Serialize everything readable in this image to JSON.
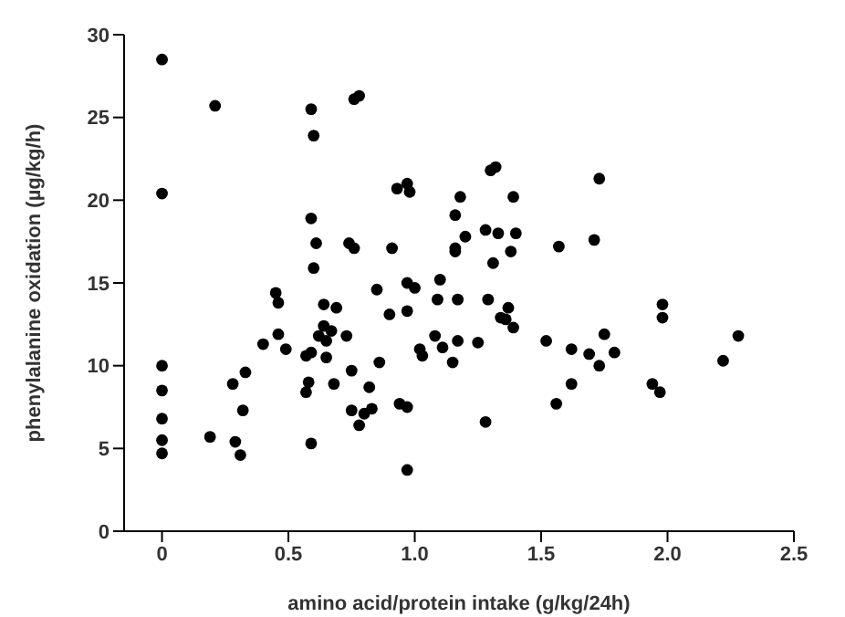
{
  "chart_data": {
    "type": "scatter",
    "xlabel": "amino acid/protein intake (g/kg/24h)",
    "ylabel": "phenylalanine oxidation (µg/kg/h)",
    "xlim": [
      -0.15,
      2.5
    ],
    "ylim": [
      0,
      30
    ],
    "xticks": [
      0,
      0.5,
      {
        "value": 1,
        "label": "1.0"
      },
      1.5,
      {
        "value": 2,
        "label": "2.0"
      },
      2.5
    ],
    "yticks": [
      0,
      5,
      10,
      15,
      20,
      25,
      30
    ],
    "grid": false,
    "legend": false,
    "marker": "circle",
    "series": [
      {
        "color": "#000000",
        "x": [
          0,
          0,
          0,
          0,
          0,
          0,
          0,
          0.21,
          0.59,
          0.6,
          0.76,
          0.78,
          0.59,
          0.61,
          0.6,
          0.74,
          0.76,
          0.85,
          0.45,
          0.46,
          0.64,
          0.69,
          0.64,
          0.67,
          0.62,
          0.65,
          0.73,
          0.46,
          0.4,
          0.49,
          0.59,
          0.57,
          0.65,
          0.86,
          0.33,
          0.28,
          0.58,
          0.57,
          0.68,
          0.75,
          0.82,
          0.32,
          0.75,
          0.8,
          0.83,
          0.78,
          0.19,
          0.29,
          0.31,
          0.59,
          0.93,
          0.97,
          0.98,
          1.18,
          1.16,
          1.2,
          1.16,
          1.16,
          0.91,
          1.3,
          1.32,
          1.39,
          1.28,
          1.33,
          1.4,
          1.38,
          1.31,
          1.57,
          0.97,
          1.0,
          1.1,
          1.09,
          1.17,
          1.29,
          0.9,
          0.97,
          1.37,
          1.34,
          1.36,
          1.39,
          1.08,
          1.02,
          1.03,
          1.11,
          1.17,
          1.15,
          1.25,
          1.52,
          1.62,
          1.62,
          0.94,
          0.97,
          1.56,
          1.28,
          0.97,
          1.73,
          1.71,
          1.98,
          1.98,
          1.75,
          1.69,
          1.79,
          1.73,
          1.94,
          1.97,
          2.22,
          2.28
        ],
        "values": [
          28.5,
          20.4,
          10.0,
          8.5,
          6.8,
          5.5,
          4.7,
          25.7,
          25.5,
          23.9,
          26.1,
          26.3,
          18.9,
          17.4,
          15.9,
          17.4,
          17.1,
          14.6,
          14.4,
          13.8,
          13.7,
          13.5,
          12.4,
          12.1,
          11.8,
          11.5,
          11.8,
          11.9,
          11.3,
          11.0,
          10.8,
          10.6,
          10.5,
          10.2,
          9.6,
          8.9,
          9.0,
          8.4,
          8.9,
          9.7,
          8.7,
          7.3,
          7.3,
          7.1,
          7.4,
          6.4,
          5.7,
          5.4,
          4.6,
          5.3,
          20.7,
          21.0,
          20.5,
          20.2,
          19.1,
          17.8,
          17.1,
          16.9,
          17.1,
          21.8,
          22.0,
          20.2,
          18.2,
          18.0,
          18.0,
          16.9,
          16.2,
          17.2,
          15.0,
          14.7,
          15.2,
          14.0,
          14.0,
          14.0,
          13.1,
          13.3,
          13.5,
          12.9,
          12.8,
          12.3,
          11.8,
          11.0,
          10.6,
          11.1,
          11.5,
          10.2,
          11.4,
          11.5,
          11.0,
          8.9,
          7.7,
          7.5,
          7.7,
          6.6,
          3.7,
          21.3,
          17.6,
          13.7,
          12.9,
          11.9,
          10.7,
          10.8,
          10.0,
          8.9,
          8.4,
          10.3,
          11.8
        ]
      }
    ]
  }
}
